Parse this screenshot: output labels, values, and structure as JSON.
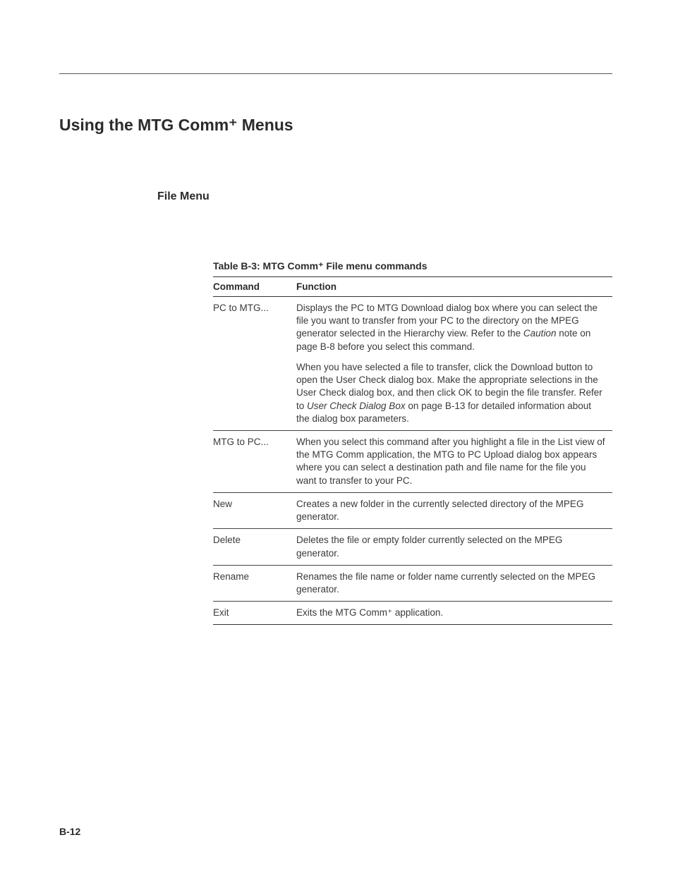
{
  "section_title": "Using the MTG Comm⁺ Menus",
  "subheading": "File Menu",
  "table_caption": "Table B-3: MTG Comm⁺ File menu commands",
  "columns": {
    "cmd": "Command",
    "fn": "Function"
  },
  "rows": [
    {
      "cmd": "PC to MTG...",
      "fn_p1_a": "Displays the PC to MTG Download dialog box where you can select the file you want to transfer from your PC to the directory on the MPEG generator selected in the Hierarchy view. Refer to the ",
      "fn_p1_i": "Caution",
      "fn_p1_b": " note on page B-8 before you select this command.",
      "fn_p2_a": "When you have selected a file to transfer, click the Download button to open the User Check dialog box. Make the appropriate selections in the User Check dialog box, and then click OK to begin the file transfer. Refer to ",
      "fn_p2_i": "User Check Dialog Box",
      "fn_p2_b": " on page B-13 for detailed information about the dialog box parameters."
    },
    {
      "cmd": "MTG to PC...",
      "fn": "When you select this command after you highlight a file in the List view of the MTG Comm application, the MTG to PC Upload dialog box appears where you can select a destination path and file name for the file you want to transfer to your PC."
    },
    {
      "cmd": "New",
      "fn": "Creates a new folder in the currently selected directory of the MPEG generator."
    },
    {
      "cmd": "Delete",
      "fn": "Deletes the file or empty folder currently selected on the MPEG generator."
    },
    {
      "cmd": "Rename",
      "fn": "Renames the file name or folder name currently selected on the MPEG generator."
    },
    {
      "cmd": "Exit",
      "fn": "Exits the MTG Comm⁺ application."
    }
  ],
  "page_number": "B-12"
}
